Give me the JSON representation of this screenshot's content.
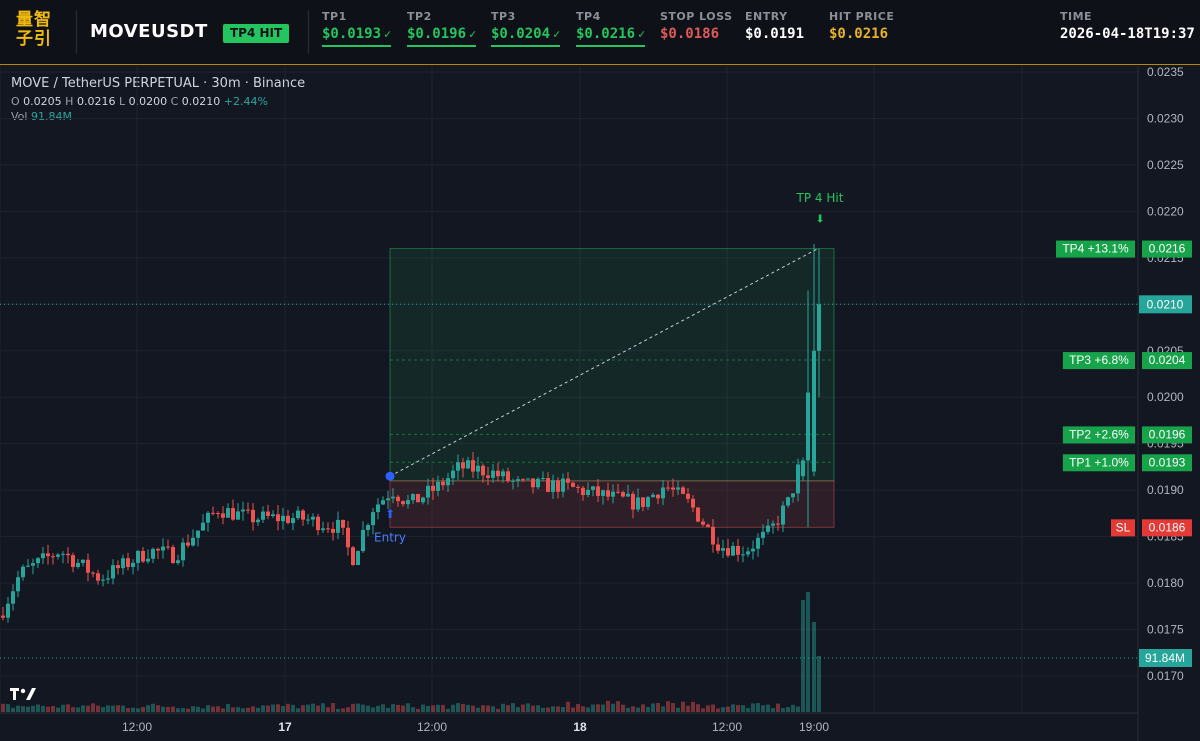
{
  "header": {
    "logo_text": [
      "量智",
      "子引"
    ],
    "symbol": "MOVEUSDT",
    "status_badge": "TP4 HIT",
    "fields": [
      {
        "label": "TP1",
        "value": "$0.0193",
        "check": "✓",
        "color": "green",
        "underline": true
      },
      {
        "label": "TP2",
        "value": "$0.0196",
        "check": "✓",
        "color": "green",
        "underline": true
      },
      {
        "label": "TP3",
        "value": "$0.0204",
        "check": "✓",
        "color": "green",
        "underline": true
      },
      {
        "label": "TP4",
        "value": "$0.0216",
        "check": "✓",
        "color": "green",
        "underline": true
      },
      {
        "label": "STOP LOSS",
        "value": "$0.0186",
        "check": "",
        "color": "red",
        "underline": false
      },
      {
        "label": "ENTRY",
        "value": "$0.0191",
        "check": "",
        "color": "white",
        "underline": false
      },
      {
        "label": "HIT PRICE",
        "value": "$0.0216",
        "check": "",
        "color": "gold",
        "underline": false
      }
    ],
    "time_label": "TIME",
    "time_value": "2026-04-18T19:37"
  },
  "legend": {
    "title": "MOVE / TetherUS PERPETUAL · 30m · Binance",
    "o_label": "O",
    "o": "0.0205",
    "h_label": "H",
    "h": "0.0216",
    "l_label": "L",
    "l": "0.0200",
    "c_label": "C",
    "c": "0.0210",
    "change": "+2.44%",
    "vol_label": "Vol",
    "vol": "91.84M"
  },
  "chart_data": {
    "type": "candlestick",
    "y_axis_ticks": [
      "0.0235",
      "0.0230",
      "0.0225",
      "0.0220",
      "0.0215",
      "0.0205",
      "0.0200",
      "0.0195",
      "0.0190",
      "0.0185",
      "0.0180",
      "0.0175",
      "0.0170"
    ],
    "y_range": [
      0.01655,
      0.02365
    ],
    "x_axis_ticks": [
      {
        "label": "12:00",
        "bold": false
      },
      {
        "label": "17",
        "bold": true
      },
      {
        "label": "12:00",
        "bold": false
      },
      {
        "label": "18",
        "bold": true
      },
      {
        "label": "12:00",
        "bold": false
      },
      {
        "label": "19:00",
        "bold": false
      }
    ],
    "current_price": "0.0210",
    "current_volume": "91.84M",
    "entry_price": 0.0191,
    "stop_loss": 0.0186,
    "targets": [
      {
        "name": "TP1",
        "label": "TP1 +1.0%",
        "price": "0.0193"
      },
      {
        "name": "TP2",
        "label": "TP2 +2.6%",
        "price": "0.0196"
      },
      {
        "name": "TP3",
        "label": "TP3 +6.8%",
        "price": "0.0204"
      },
      {
        "name": "TP4",
        "label": "TP4 +13.1%",
        "price": "0.0216"
      }
    ],
    "sl_label": "SL",
    "sl_price": "0.0186",
    "entry_marker_label": "Entry",
    "hit_annotation": "TP 4 Hit",
    "colors": {
      "up": "#26a69a",
      "down": "#ef5350",
      "tp": "#22c55e",
      "sl": "#e53935",
      "entry": "#2962ff"
    }
  },
  "watermark": "17"
}
